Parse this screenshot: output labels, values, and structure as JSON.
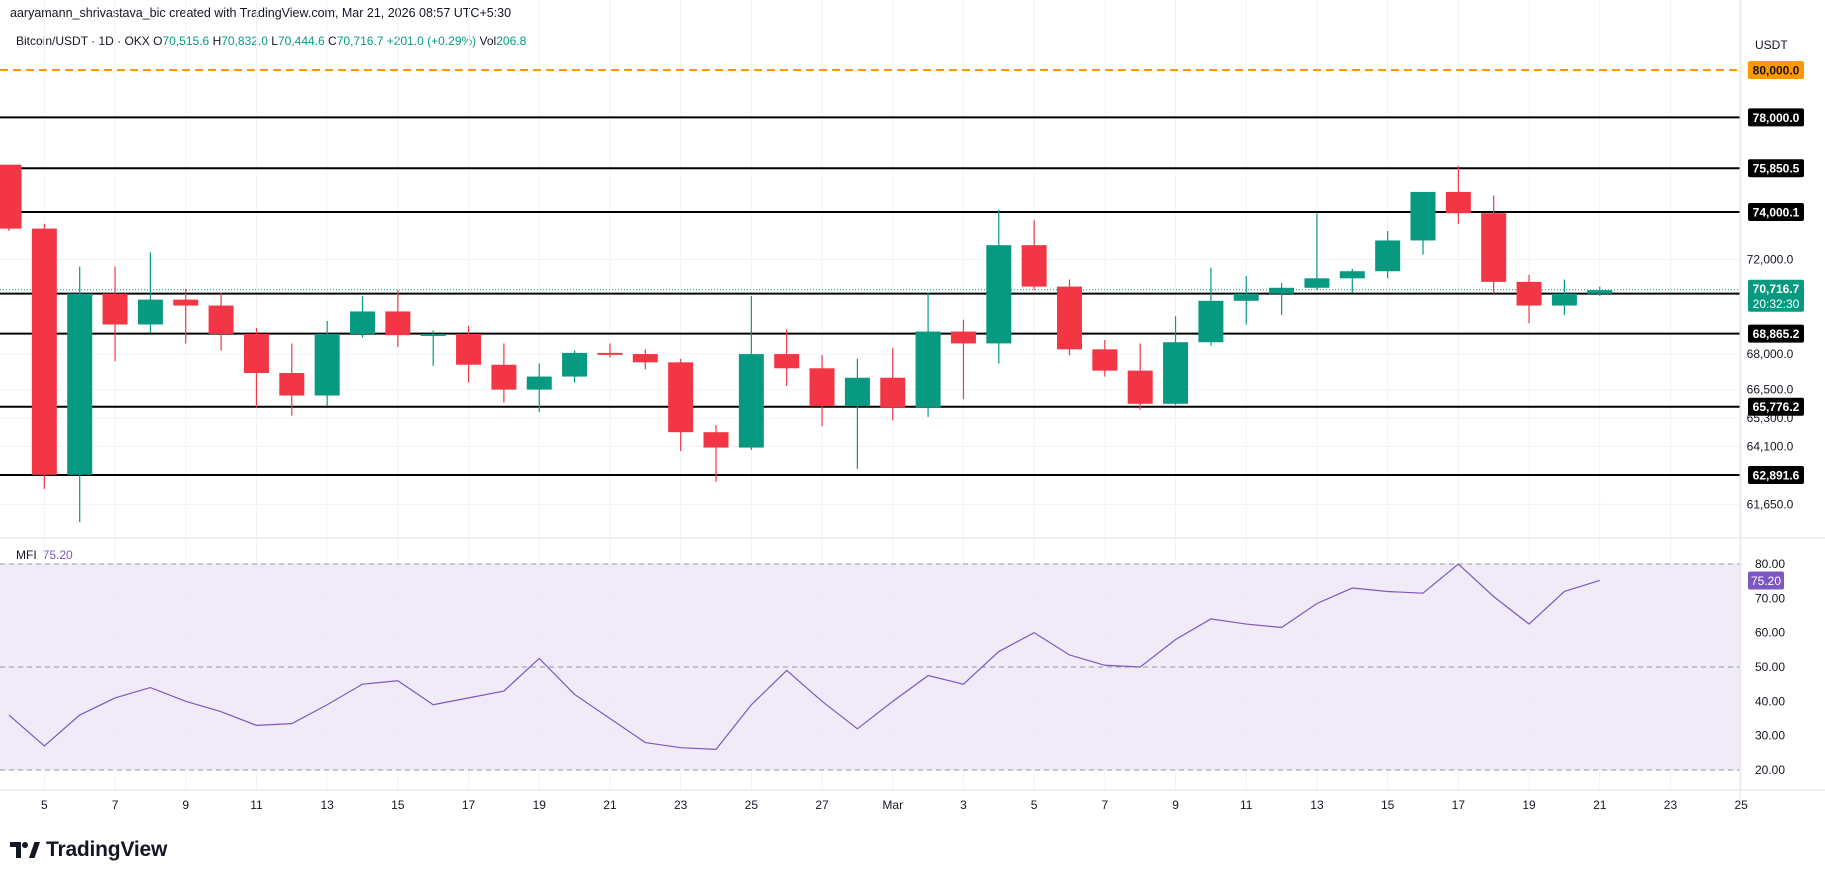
{
  "header": {
    "author_line": "aaryamann_shrivastava_bic created with TradingView.com, Mar 21, 2026 08:57 UTC+5:30",
    "symbol": "Bitcoin/USDT · 1D · OKX",
    "open_label": "O",
    "open": "70,515.6",
    "high_label": "H",
    "high": "70,832.0",
    "low_label": "L",
    "low": "70,444.6",
    "close_label": "C",
    "close": "70,716.7",
    "change": "+201.0 (+0.29%)",
    "vol_label": "Vol",
    "vol": "206.8"
  },
  "price_axis": {
    "unit": "USDT",
    "ticks": [
      "72,000.0",
      "68,000.0",
      "66,500.0",
      "65,300.0",
      "64,100.0",
      "61,650.0"
    ],
    "tick_values": [
      72000,
      68000,
      66500,
      65300,
      64100,
      61650
    ]
  },
  "levels": [
    {
      "label": "80,000.0",
      "value": 80000,
      "style": "dashed",
      "color": "#ff9800"
    },
    {
      "label": "78,000.0",
      "value": 78000,
      "style": "solid",
      "color": "#000000"
    },
    {
      "label": "75,850.5",
      "value": 75850.5,
      "style": "solid",
      "color": "#000000"
    },
    {
      "label": "74,000.1",
      "value": 74000.1,
      "style": "solid",
      "color": "#000000"
    },
    {
      "label": "70,552.5",
      "value": 70552.5,
      "style": "solid",
      "color": "#000000"
    },
    {
      "label": "68,865.2",
      "value": 68865.2,
      "style": "solid",
      "color": "#000000"
    },
    {
      "label": "65,776.2",
      "value": 65776.2,
      "style": "solid",
      "color": "#000000"
    },
    {
      "label": "62,891.6",
      "value": 62891.6,
      "style": "solid",
      "color": "#000000"
    }
  ],
  "last_price": {
    "label": "70,716.7",
    "countdown": "20:32:30",
    "value": 70716.7,
    "color": "#089981"
  },
  "x_axis": {
    "labels": [
      {
        "text": "5",
        "idx": 1
      },
      {
        "text": "7",
        "idx": 3
      },
      {
        "text": "9",
        "idx": 5
      },
      {
        "text": "11",
        "idx": 7
      },
      {
        "text": "13",
        "idx": 9
      },
      {
        "text": "15",
        "idx": 11
      },
      {
        "text": "17",
        "idx": 13
      },
      {
        "text": "19",
        "idx": 15
      },
      {
        "text": "21",
        "idx": 17
      },
      {
        "text": "23",
        "idx": 19
      },
      {
        "text": "25",
        "idx": 21
      },
      {
        "text": "27",
        "idx": 23
      },
      {
        "text": "Mar",
        "idx": 25
      },
      {
        "text": "3",
        "idx": 27
      },
      {
        "text": "5",
        "idx": 29
      },
      {
        "text": "7",
        "idx": 31
      },
      {
        "text": "9",
        "idx": 33
      },
      {
        "text": "11",
        "idx": 35
      },
      {
        "text": "13",
        "idx": 37
      },
      {
        "text": "15",
        "idx": 39
      },
      {
        "text": "17",
        "idx": 41
      },
      {
        "text": "19",
        "idx": 43
      },
      {
        "text": "21",
        "idx": 45
      },
      {
        "text": "23",
        "idx": 47
      },
      {
        "text": "25",
        "idx": 49
      }
    ]
  },
  "colors": {
    "up": "#089981",
    "down": "#f23645",
    "mfi_line": "#7e57c2",
    "mfi_fill": "#ede7f6",
    "level_dashed": "#ff9800"
  },
  "mfi": {
    "name": "MFI",
    "value_label": "75.20",
    "ticks": [
      "80.00",
      "70.00",
      "60.00",
      "50.00",
      "40.00",
      "30.00",
      "20.00"
    ],
    "tick_values": [
      80,
      70,
      60,
      50,
      40,
      30,
      20
    ],
    "band_upper": 80,
    "band_middle": 50,
    "band_lower": 20
  },
  "chart_data": {
    "type": "candlestick",
    "title": "Bitcoin/USDT · 1D · OKX",
    "ylabel": "USDT",
    "x": [
      "Feb 4",
      "Feb 5",
      "Feb 6",
      "Feb 7",
      "Feb 8",
      "Feb 9",
      "Feb 10",
      "Feb 11",
      "Feb 12",
      "Feb 13",
      "Feb 14",
      "Feb 15",
      "Feb 16",
      "Feb 17",
      "Feb 18",
      "Feb 19",
      "Feb 20",
      "Feb 21",
      "Feb 22",
      "Feb 23",
      "Feb 24",
      "Feb 25",
      "Feb 26",
      "Feb 27",
      "Feb 28",
      "Mar 1",
      "Mar 2",
      "Mar 3",
      "Mar 4",
      "Mar 5",
      "Mar 6",
      "Mar 7",
      "Mar 8",
      "Mar 9",
      "Mar 10",
      "Mar 11",
      "Mar 12",
      "Mar 13",
      "Mar 14",
      "Mar 15",
      "Mar 16",
      "Mar 17",
      "Mar 18",
      "Mar 19",
      "Mar 20",
      "Mar 21"
    ],
    "candles": [
      {
        "o": 76000,
        "h": 76000,
        "l": 73200,
        "c": 73300
      },
      {
        "o": 73300,
        "h": 73500,
        "l": 62300,
        "c": 62900
      },
      {
        "o": 62900,
        "h": 71700,
        "l": 60900,
        "c": 70550
      },
      {
        "o": 70550,
        "h": 71700,
        "l": 67700,
        "c": 69250
      },
      {
        "o": 69250,
        "h": 72300,
        "l": 68900,
        "c": 70300
      },
      {
        "o": 70300,
        "h": 70750,
        "l": 68450,
        "c": 70050
      },
      {
        "o": 70050,
        "h": 70600,
        "l": 68150,
        "c": 68850
      },
      {
        "o": 68850,
        "h": 69100,
        "l": 65750,
        "c": 67200
      },
      {
        "o": 67200,
        "h": 68450,
        "l": 65400,
        "c": 66250
      },
      {
        "o": 66250,
        "h": 69400,
        "l": 65800,
        "c": 68850
      },
      {
        "o": 68850,
        "h": 70450,
        "l": 68700,
        "c": 69800
      },
      {
        "o": 69800,
        "h": 70700,
        "l": 68300,
        "c": 68800
      },
      {
        "o": 68800,
        "h": 69000,
        "l": 67500,
        "c": 68850
      },
      {
        "o": 68850,
        "h": 69200,
        "l": 66800,
        "c": 67550
      },
      {
        "o": 67550,
        "h": 68450,
        "l": 65950,
        "c": 66500
      },
      {
        "o": 66500,
        "h": 67600,
        "l": 65550,
        "c": 67050
      },
      {
        "o": 67050,
        "h": 68150,
        "l": 66800,
        "c": 68050
      },
      {
        "o": 68050,
        "h": 68450,
        "l": 67850,
        "c": 68000
      },
      {
        "o": 68000,
        "h": 68200,
        "l": 67350,
        "c": 67650
      },
      {
        "o": 67650,
        "h": 67800,
        "l": 63900,
        "c": 64700
      },
      {
        "o": 64700,
        "h": 65000,
        "l": 62600,
        "c": 64050
      },
      {
        "o": 64050,
        "h": 70450,
        "l": 63950,
        "c": 68000
      },
      {
        "o": 68000,
        "h": 69050,
        "l": 66650,
        "c": 67400
      },
      {
        "o": 67400,
        "h": 67950,
        "l": 64950,
        "c": 65800
      },
      {
        "o": 65800,
        "h": 67800,
        "l": 63150,
        "c": 67000
      },
      {
        "o": 67000,
        "h": 68250,
        "l": 65200,
        "c": 65750
      },
      {
        "o": 65750,
        "h": 70600,
        "l": 65350,
        "c": 68950
      },
      {
        "o": 68950,
        "h": 69450,
        "l": 66100,
        "c": 68450
      },
      {
        "o": 68450,
        "h": 74100,
        "l": 67600,
        "c": 72600
      },
      {
        "o": 72600,
        "h": 73650,
        "l": 70700,
        "c": 70850
      },
      {
        "o": 70850,
        "h": 71150,
        "l": 67950,
        "c": 68200
      },
      {
        "o": 68200,
        "h": 68600,
        "l": 67050,
        "c": 67300
      },
      {
        "o": 67300,
        "h": 68450,
        "l": 65650,
        "c": 65900
      },
      {
        "o": 65900,
        "h": 69600,
        "l": 65850,
        "c": 68500
      },
      {
        "o": 68500,
        "h": 71650,
        "l": 68350,
        "c": 70250
      },
      {
        "o": 70250,
        "h": 71300,
        "l": 69250,
        "c": 70550
      },
      {
        "o": 70550,
        "h": 71000,
        "l": 69650,
        "c": 70800
      },
      {
        "o": 70800,
        "h": 73950,
        "l": 70700,
        "c": 71200
      },
      {
        "o": 71200,
        "h": 71600,
        "l": 70600,
        "c": 71500
      },
      {
        "o": 71500,
        "h": 73200,
        "l": 71200,
        "c": 72800
      },
      {
        "o": 72800,
        "h": 74850,
        "l": 72200,
        "c": 74850
      },
      {
        "o": 74850,
        "h": 75950,
        "l": 73500,
        "c": 73950
      },
      {
        "o": 73950,
        "h": 74700,
        "l": 70550,
        "c": 71050
      },
      {
        "o": 71050,
        "h": 71350,
        "l": 69300,
        "c": 70050
      },
      {
        "o": 70050,
        "h": 71150,
        "l": 69650,
        "c": 70550
      },
      {
        "o": 70550,
        "h": 70850,
        "l": 70450,
        "c": 70700
      }
    ],
    "mfi_values": [
      36,
      27,
      36,
      41,
      44,
      40,
      37,
      33,
      33.5,
      39,
      45,
      46,
      39,
      41,
      43,
      52.5,
      42,
      35,
      28,
      26.5,
      26,
      39,
      49,
      40,
      32,
      40,
      47.5,
      45,
      54.5,
      60,
      53.5,
      50.5,
      50,
      58,
      64,
      62.5,
      61.5,
      68.5,
      73,
      72,
      71.5,
      80,
      70.5,
      62.5,
      72,
      75.2
    ]
  }
}
